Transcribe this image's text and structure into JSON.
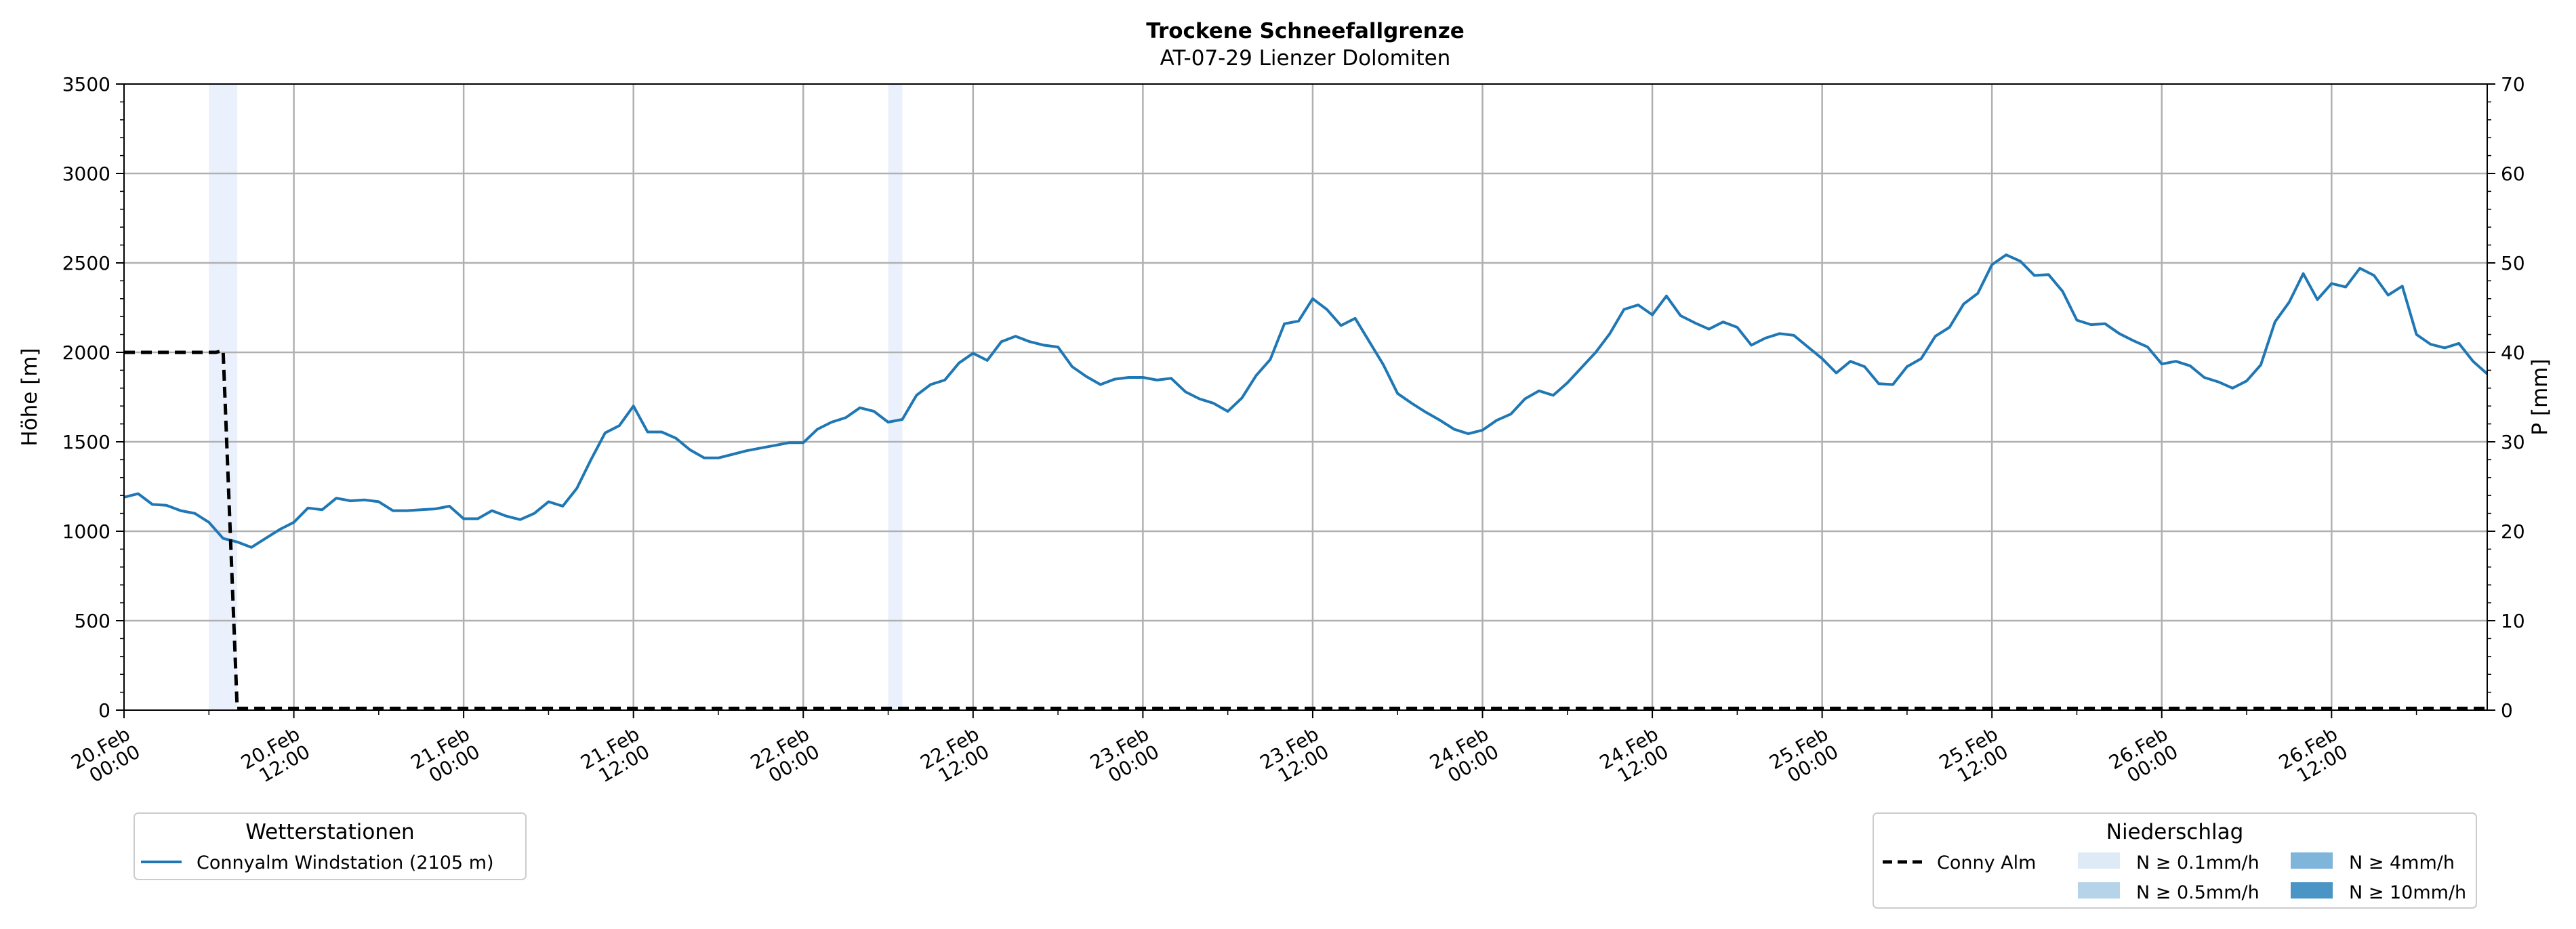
{
  "chart_data": {
    "type": "line",
    "title": "Trockene Schneefallgrenze",
    "subtitle": "AT-07-29 Lienzer Dolomiten",
    "ylabel": "Höhe [m]",
    "y2label": "P [mm]",
    "ylim": [
      0,
      3500
    ],
    "y2lim": [
      0,
      70
    ],
    "yticks": [
      0,
      500,
      1000,
      1500,
      2000,
      2500,
      3000,
      3500
    ],
    "y2ticks": [
      0,
      10,
      20,
      30,
      40,
      50,
      60,
      70
    ],
    "x_hours_range": [
      0,
      167
    ],
    "xticks": [
      {
        "hour": 0,
        "line1": "20.Feb",
        "line2": "00:00"
      },
      {
        "hour": 12,
        "line1": "20.Feb",
        "line2": "12:00"
      },
      {
        "hour": 24,
        "line1": "21.Feb",
        "line2": "00:00"
      },
      {
        "hour": 36,
        "line1": "21.Feb",
        "line2": "12:00"
      },
      {
        "hour": 48,
        "line1": "22.Feb",
        "line2": "00:00"
      },
      {
        "hour": 60,
        "line1": "22.Feb",
        "line2": "12:00"
      },
      {
        "hour": 72,
        "line1": "23.Feb",
        "line2": "00:00"
      },
      {
        "hour": 84,
        "line1": "23.Feb",
        "line2": "12:00"
      },
      {
        "hour": 96,
        "line1": "24.Feb",
        "line2": "00:00"
      },
      {
        "hour": 108,
        "line1": "24.Feb",
        "line2": "12:00"
      },
      {
        "hour": 120,
        "line1": "25.Feb",
        "line2": "00:00"
      },
      {
        "hour": 132,
        "line1": "25.Feb",
        "line2": "12:00"
      },
      {
        "hour": 144,
        "line1": "26.Feb",
        "line2": "00:00"
      },
      {
        "hour": 156,
        "line1": "26.Feb",
        "line2": "12:00"
      }
    ],
    "grid": true,
    "precip_bands": [
      {
        "start_hour": 6,
        "end_hour": 8,
        "class": "N ≥ 0.1mm/h"
      },
      {
        "start_hour": 54,
        "end_hour": 55,
        "class": "N ≥ 0.1mm/h"
      }
    ],
    "series": [
      {
        "name": "Connyalm Windstation (2105 m)",
        "color": "#1f77b4",
        "style": "solid",
        "points": [
          [
            0,
            1190
          ],
          [
            1,
            1210
          ],
          [
            2,
            1150
          ],
          [
            3,
            1145
          ],
          [
            4,
            1115
          ],
          [
            5,
            1100
          ],
          [
            6,
            1050
          ],
          [
            7,
            960
          ],
          [
            8,
            940
          ],
          [
            9,
            910
          ],
          [
            10,
            960
          ],
          [
            11,
            1010
          ],
          [
            12,
            1050
          ],
          [
            13,
            1130
          ],
          [
            14,
            1120
          ],
          [
            15,
            1185
          ],
          [
            16,
            1170
          ],
          [
            17,
            1175
          ],
          [
            18,
            1165
          ],
          [
            19,
            1115
          ],
          [
            20,
            1115
          ],
          [
            21,
            1120
          ],
          [
            22,
            1125
          ],
          [
            23,
            1140
          ],
          [
            24,
            1070
          ],
          [
            25,
            1070
          ],
          [
            26,
            1115
          ],
          [
            27,
            1085
          ],
          [
            28,
            1065
          ],
          [
            29,
            1100
          ],
          [
            30,
            1165
          ],
          [
            31,
            1140
          ],
          [
            32,
            1240
          ],
          [
            33,
            1400
          ],
          [
            34,
            1550
          ],
          [
            35,
            1590
          ],
          [
            36,
            1700
          ],
          [
            37,
            1555
          ],
          [
            38,
            1555
          ],
          [
            39,
            1520
          ],
          [
            40,
            1455
          ],
          [
            41,
            1410
          ],
          [
            42,
            1410
          ],
          [
            43,
            1430
          ],
          [
            44,
            1450
          ],
          [
            45,
            1465
          ],
          [
            46,
            1480
          ],
          [
            47,
            1495
          ],
          [
            48,
            1495
          ],
          [
            49,
            1570
          ],
          [
            50,
            1610
          ],
          [
            51,
            1635
          ],
          [
            52,
            1690
          ],
          [
            53,
            1670
          ],
          [
            54,
            1610
          ],
          [
            55,
            1625
          ],
          [
            56,
            1760
          ],
          [
            57,
            1820
          ],
          [
            58,
            1845
          ],
          [
            59,
            1940
          ],
          [
            60,
            1995
          ],
          [
            61,
            1955
          ],
          [
            62,
            2060
          ],
          [
            63,
            2090
          ],
          [
            64,
            2060
          ],
          [
            65,
            2040
          ],
          [
            66,
            2030
          ],
          [
            67,
            1920
          ],
          [
            68,
            1865
          ],
          [
            69,
            1820
          ],
          [
            70,
            1850
          ],
          [
            71,
            1860
          ],
          [
            72,
            1860
          ],
          [
            73,
            1845
          ],
          [
            74,
            1855
          ],
          [
            75,
            1780
          ],
          [
            76,
            1740
          ],
          [
            77,
            1715
          ],
          [
            78,
            1670
          ],
          [
            79,
            1745
          ],
          [
            80,
            1870
          ],
          [
            81,
            1960
          ],
          [
            82,
            2160
          ],
          [
            83,
            2175
          ],
          [
            84,
            2300
          ],
          [
            85,
            2240
          ],
          [
            86,
            2150
          ],
          [
            87,
            2190
          ],
          [
            88,
            2060
          ],
          [
            89,
            1930
          ],
          [
            90,
            1770
          ],
          [
            91,
            1715
          ],
          [
            92,
            1665
          ],
          [
            93,
            1620
          ],
          [
            94,
            1570
          ],
          [
            95,
            1545
          ],
          [
            96,
            1565
          ],
          [
            97,
            1620
          ],
          [
            98,
            1655
          ],
          [
            99,
            1740
          ],
          [
            100,
            1785
          ],
          [
            101,
            1760
          ],
          [
            102,
            1830
          ],
          [
            103,
            1915
          ],
          [
            104,
            2000
          ],
          [
            105,
            2105
          ],
          [
            106,
            2240
          ],
          [
            107,
            2265
          ],
          [
            108,
            2210
          ],
          [
            109,
            2315
          ],
          [
            110,
            2205
          ],
          [
            111,
            2165
          ],
          [
            112,
            2130
          ],
          [
            113,
            2170
          ],
          [
            114,
            2140
          ],
          [
            115,
            2040
          ],
          [
            116,
            2080
          ],
          [
            117,
            2105
          ],
          [
            118,
            2095
          ],
          [
            119,
            2030
          ],
          [
            120,
            1965
          ],
          [
            121,
            1885
          ],
          [
            122,
            1950
          ],
          [
            123,
            1920
          ],
          [
            124,
            1825
          ],
          [
            125,
            1820
          ],
          [
            126,
            1920
          ],
          [
            127,
            1965
          ],
          [
            128,
            2090
          ],
          [
            129,
            2140
          ],
          [
            130,
            2270
          ],
          [
            131,
            2330
          ],
          [
            132,
            2490
          ],
          [
            133,
            2545
          ],
          [
            134,
            2510
          ],
          [
            135,
            2430
          ],
          [
            136,
            2435
          ],
          [
            137,
            2340
          ],
          [
            138,
            2180
          ],
          [
            139,
            2155
          ],
          [
            140,
            2160
          ],
          [
            141,
            2105
          ],
          [
            142,
            2065
          ],
          [
            143,
            2030
          ],
          [
            144,
            1935
          ],
          [
            145,
            1950
          ],
          [
            146,
            1925
          ],
          [
            147,
            1860
          ],
          [
            148,
            1835
          ],
          [
            149,
            1800
          ],
          [
            150,
            1840
          ],
          [
            151,
            1930
          ],
          [
            152,
            2170
          ],
          [
            153,
            2280
          ],
          [
            154,
            2440
          ],
          [
            155,
            2295
          ],
          [
            156,
            2385
          ],
          [
            157,
            2365
          ],
          [
            158,
            2470
          ],
          [
            159,
            2430
          ],
          [
            160,
            2320
          ],
          [
            161,
            2370
          ],
          [
            162,
            2100
          ],
          [
            163,
            2045
          ],
          [
            164,
            2025
          ],
          [
            165,
            2050
          ],
          [
            166,
            1950
          ],
          [
            167,
            1880
          ]
        ]
      },
      {
        "name": "Conny Alm",
        "color": "#000000",
        "style": "dashed",
        "points": [
          [
            0,
            2000
          ],
          [
            6.5,
            2000
          ],
          [
            7,
            2010
          ],
          [
            8,
            10
          ],
          [
            167,
            10
          ]
        ]
      }
    ],
    "legend_left": {
      "title": "Wetterstationen",
      "entries": [
        {
          "label": "Connyalm Windstation (2105 m)",
          "color": "#1f77b4"
        }
      ],
      "placement": "bottom-left"
    },
    "legend_right": {
      "title": "Niederschlag",
      "placement": "bottom-right",
      "line_entry": {
        "label": "Conny Alm",
        "color": "#000000"
      },
      "swatches": [
        {
          "label": "N ≥ 0.1mm/h",
          "color": "#deebf7"
        },
        {
          "label": "N ≥ 0.5mm/h",
          "color": "#b5d4e9"
        },
        {
          "label": "N ≥ 4mm/h",
          "color": "#7fb5da"
        },
        {
          "label": "N ≥ 10mm/h",
          "color": "#4a94c6"
        }
      ]
    }
  }
}
